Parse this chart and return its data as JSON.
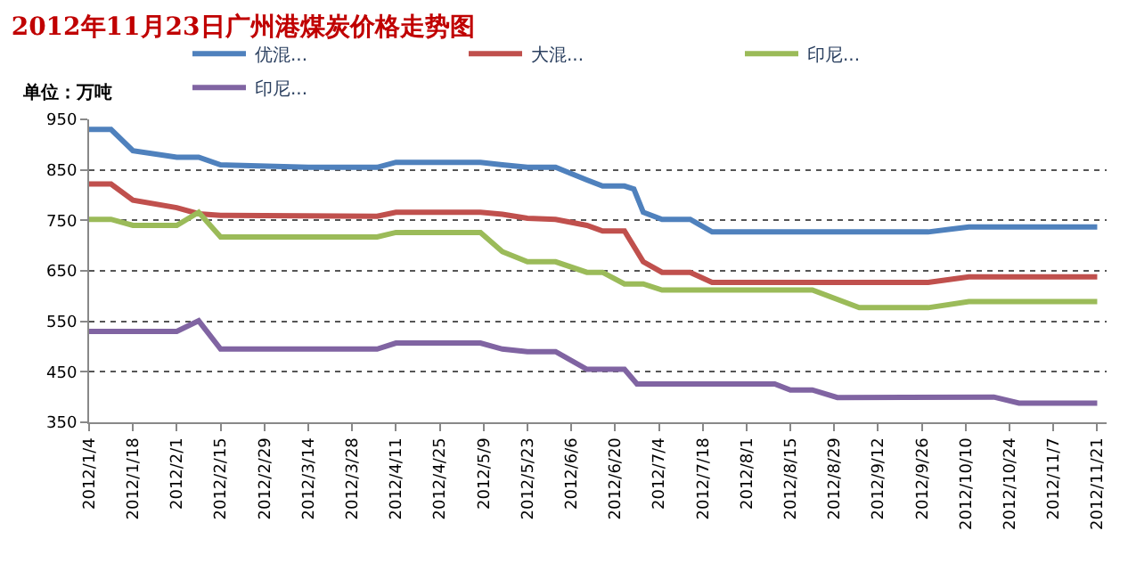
{
  "chart_data": {
    "type": "line",
    "title": "2012年11月23日广州港煤炭价格走势图",
    "annotations": [
      "单位：万吨"
    ],
    "series": [
      {
        "name": "优混...",
        "color": "#4f81bd",
        "x": [
          "2012-01-04",
          "2012-01-11",
          "2012-01-18",
          "2012-02-01",
          "2012-02-08",
          "2012-02-15",
          "2012-03-14",
          "2012-04-05",
          "2012-04-11",
          "2012-05-08",
          "2012-05-15",
          "2012-05-23",
          "2012-06-01",
          "2012-06-11",
          "2012-06-16",
          "2012-06-23",
          "2012-06-26",
          "2012-06-29",
          "2012-07-05",
          "2012-07-14",
          "2012-07-21",
          "2012-09-28",
          "2012-10-11",
          "2012-11-21"
        ],
        "values": [
          930,
          930,
          888,
          875,
          875,
          860,
          855,
          855,
          865,
          865,
          860,
          855,
          855,
          830,
          818,
          818,
          812,
          766,
          752,
          752,
          727,
          727,
          737,
          737
        ]
      },
      {
        "name": "大混...",
        "color": "#c0504d",
        "x": [
          "2012-01-04",
          "2012-01-11",
          "2012-01-18",
          "2012-02-01",
          "2012-02-08",
          "2012-02-15",
          "2012-04-05",
          "2012-04-11",
          "2012-05-08",
          "2012-05-15",
          "2012-05-23",
          "2012-06-01",
          "2012-06-11",
          "2012-06-16",
          "2012-06-23",
          "2012-06-29",
          "2012-07-05",
          "2012-07-14",
          "2012-07-21",
          "2012-09-28",
          "2012-10-11",
          "2012-11-21"
        ],
        "values": [
          822,
          822,
          790,
          775,
          763,
          760,
          758,
          766,
          766,
          762,
          754,
          752,
          740,
          729,
          729,
          668,
          647,
          647,
          627,
          627,
          638,
          638
        ]
      },
      {
        "name": "印尼...",
        "color": "#9bbb59",
        "x": [
          "2012-01-04",
          "2012-01-11",
          "2012-01-18",
          "2012-02-01",
          "2012-02-08",
          "2012-02-15",
          "2012-04-05",
          "2012-04-11",
          "2012-05-08",
          "2012-05-15",
          "2012-05-23",
          "2012-06-01",
          "2012-06-11",
          "2012-06-16",
          "2012-06-23",
          "2012-06-29",
          "2012-07-05",
          "2012-08-22",
          "2012-09-06",
          "2012-09-28",
          "2012-10-11",
          "2012-11-21"
        ],
        "values": [
          752,
          752,
          740,
          740,
          766,
          717,
          717,
          726,
          726,
          688,
          668,
          668,
          647,
          647,
          624,
          624,
          612,
          612,
          577,
          577,
          589,
          589
        ]
      },
      {
        "name": "印尼...",
        "color": "#8064a2",
        "x": [
          "2012-01-04",
          "2012-02-01",
          "2012-02-08",
          "2012-02-15",
          "2012-04-05",
          "2012-04-11",
          "2012-05-08",
          "2012-05-15",
          "2012-05-23",
          "2012-06-01",
          "2012-06-11",
          "2012-06-23",
          "2012-06-27",
          "2012-08-10",
          "2012-08-15",
          "2012-08-22",
          "2012-08-30",
          "2012-10-19",
          "2012-10-27",
          "2012-11-21"
        ],
        "values": [
          530,
          530,
          551,
          495,
          495,
          507,
          507,
          495,
          490,
          490,
          455,
          455,
          426,
          426,
          414,
          414,
          399,
          400,
          388,
          388
        ]
      }
    ],
    "xlim": [
      "2012-01-04",
      "2012-11-24"
    ],
    "xticks": [
      {
        "value": "2012-01-04",
        "label": "2012/1/4"
      },
      {
        "value": "2012-01-18",
        "label": "2012/1/18"
      },
      {
        "value": "2012-02-01",
        "label": "2012/2/1"
      },
      {
        "value": "2012-02-15",
        "label": "2012/2/15"
      },
      {
        "value": "2012-02-29",
        "label": "2012/2/29"
      },
      {
        "value": "2012-03-14",
        "label": "2012/3/14"
      },
      {
        "value": "2012-03-28",
        "label": "2012/3/28"
      },
      {
        "value": "2012-04-11",
        "label": "2012/4/11"
      },
      {
        "value": "2012-04-25",
        "label": "2012/4/25"
      },
      {
        "value": "2012-05-09",
        "label": "2012/5/9"
      },
      {
        "value": "2012-05-23",
        "label": "2012/5/23"
      },
      {
        "value": "2012-06-06",
        "label": "2012/6/6"
      },
      {
        "value": "2012-06-20",
        "label": "2012/6/20"
      },
      {
        "value": "2012-07-04",
        "label": "2012/7/4"
      },
      {
        "value": "2012-07-18",
        "label": "2012/7/18"
      },
      {
        "value": "2012-08-01",
        "label": "2012/8/1"
      },
      {
        "value": "2012-08-15",
        "label": "2012/8/15"
      },
      {
        "value": "2012-08-29",
        "label": "2012/8/29"
      },
      {
        "value": "2012-09-12",
        "label": "2012/9/12"
      },
      {
        "value": "2012-09-26",
        "label": "2012/9/26"
      },
      {
        "value": "2012-10-10",
        "label": "2012/10/10"
      },
      {
        "value": "2012-10-24",
        "label": "2012/10/24"
      },
      {
        "value": "2012-11-07",
        "label": "2012/11/7"
      },
      {
        "value": "2012-11-21",
        "label": "2012/11/21"
      }
    ],
    "ylim": [
      350,
      950
    ],
    "yticks": [
      350,
      450,
      550,
      650,
      750,
      850,
      950
    ],
    "grid": "y",
    "legend": "top",
    "marker": "none",
    "line_style": "solid"
  }
}
